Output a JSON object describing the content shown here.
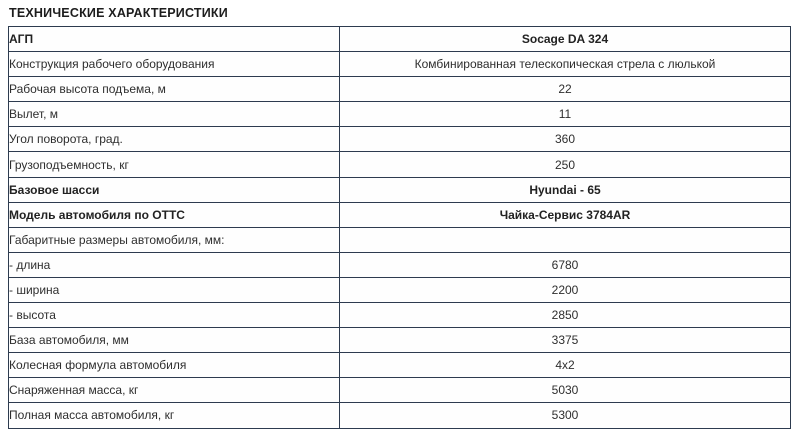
{
  "page_title": "ТЕХНИЧЕСКИЕ ХАРАКТЕРИСТИКИ",
  "colors": {
    "border": "#2d3b4f",
    "title_text": "#1d1d1d",
    "cell_text": "#2e2e2e",
    "cell_background": "#fefefe"
  },
  "table": {
    "rows": [
      {
        "label": "АГП",
        "value": "Socage DA 324",
        "bold": true
      },
      {
        "label": "Конструкция рабочего оборудования",
        "value": "Комбинированная телескопическая стрела с люлькой",
        "bold": false
      },
      {
        "label": "Рабочая высота подъема, м",
        "value": "22",
        "bold": false
      },
      {
        "label": "Вылет, м",
        "value": "11",
        "bold": false
      },
      {
        "label": "Угол поворота, град.",
        "value": "360",
        "bold": false
      },
      {
        "label": "Грузоподъемность, кг",
        "value": "250",
        "bold": false
      },
      {
        "label": "Базовое шасси",
        "value": "Hyundai - 65",
        "bold": true
      },
      {
        "label": "Модель автомобиля по ОТТС",
        "value": "Чайка-Сервис 3784AR",
        "bold": true
      },
      {
        "label": "Габаритные размеры автомобиля, мм:",
        "value": "",
        "bold": false
      },
      {
        "label": "- длина",
        "value": "6780",
        "bold": false
      },
      {
        "label": "- ширина",
        "value": "2200",
        "bold": false
      },
      {
        "label": "- высота",
        "value": "2850",
        "bold": false
      },
      {
        "label": "База автомобиля, мм",
        "value": "3375",
        "bold": false
      },
      {
        "label": "Колесная формула автомобиля",
        "value": "4x2",
        "bold": false
      },
      {
        "label": "Снаряженная масса, кг",
        "value": "5030",
        "bold": false
      },
      {
        "label": "Полная масса автомобиля, кг",
        "value": "5300",
        "bold": false
      }
    ]
  }
}
